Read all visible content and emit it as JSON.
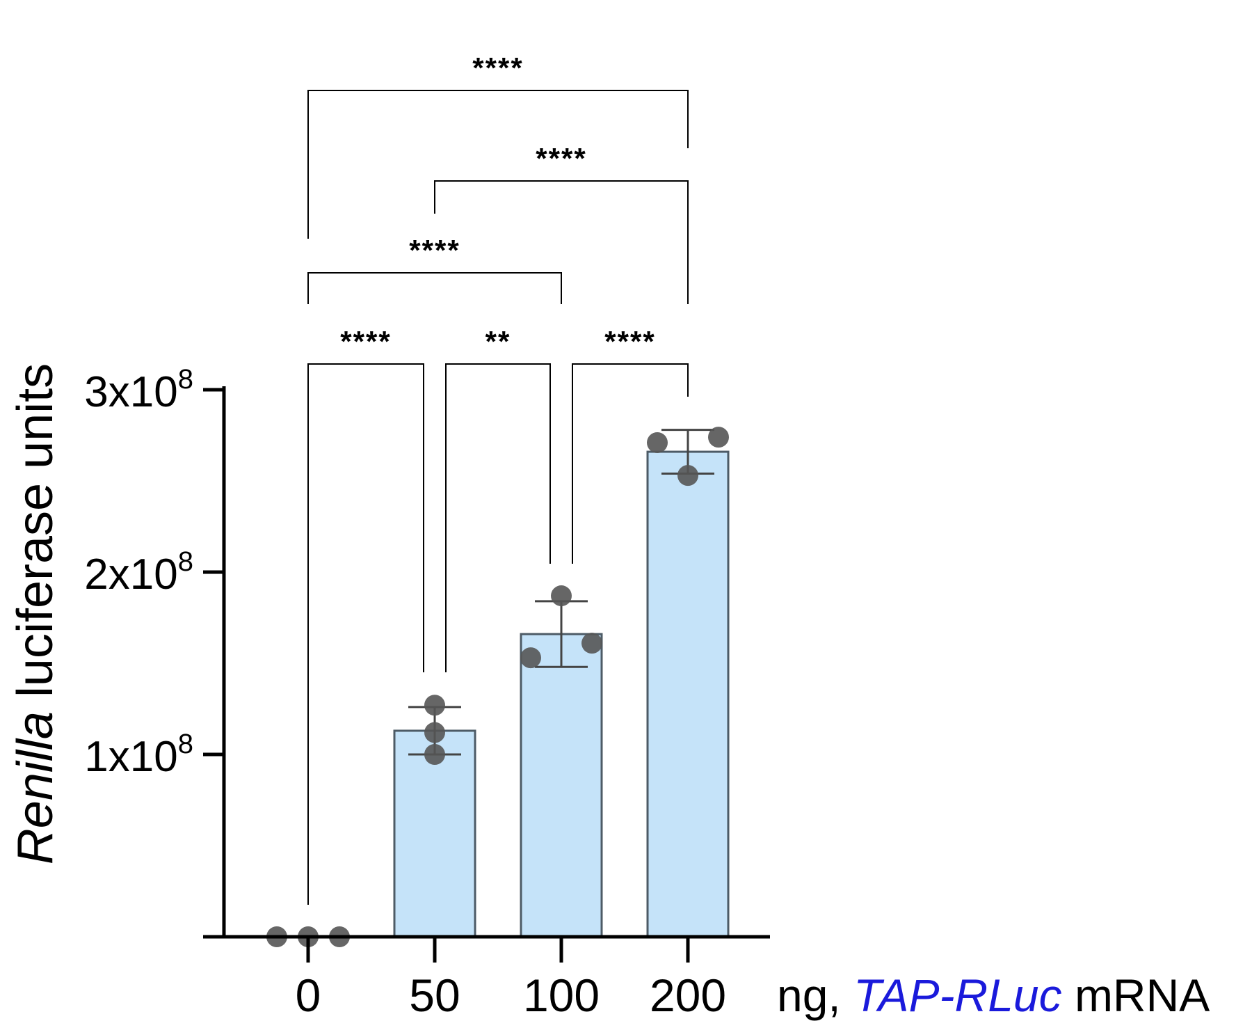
{
  "chart_data": {
    "type": "bar",
    "categories": [
      "0",
      "50",
      "100",
      "200"
    ],
    "xlabel": {
      "prefix": "ng, ",
      "gene": "TAP-RLuc",
      "suffix": " mRNA"
    },
    "ylabel": {
      "italic": "Renilla",
      "rest": " luciferase units"
    },
    "ylim": [
      0,
      300000000
    ],
    "yticks": [
      {
        "value": 100000000,
        "base": "1x10",
        "exp": "8"
      },
      {
        "value": 200000000,
        "base": "2x10",
        "exp": "8"
      },
      {
        "value": 300000000,
        "base": "3x10",
        "exp": "8"
      }
    ],
    "series": [
      {
        "values": [
          0,
          113000000,
          166000000,
          266000000
        ],
        "sd": [
          0,
          13000000,
          18000000,
          12000000
        ],
        "points": [
          [
            0,
            0,
            0
          ],
          [
            100000000,
            112000000,
            127000000
          ],
          [
            153000000,
            161000000,
            187000000
          ],
          [
            253000000,
            271000000,
            274000000
          ]
        ]
      }
    ],
    "comparisons": [
      {
        "from": 0,
        "to": 3,
        "label": "****"
      },
      {
        "from": 1,
        "to": 3,
        "label": "****"
      },
      {
        "from": 0,
        "to": 2,
        "label": "****"
      },
      {
        "from": 0,
        "to": 1,
        "label": "****"
      },
      {
        "from": 1,
        "to": 2,
        "label": "**"
      },
      {
        "from": 2,
        "to": 3,
        "label": "****"
      }
    ],
    "colors": {
      "bar_fill": "#c5e3f9",
      "bar_stroke": "#4d5b66",
      "points": "#555555",
      "gene_text": "#1a1adb"
    }
  }
}
